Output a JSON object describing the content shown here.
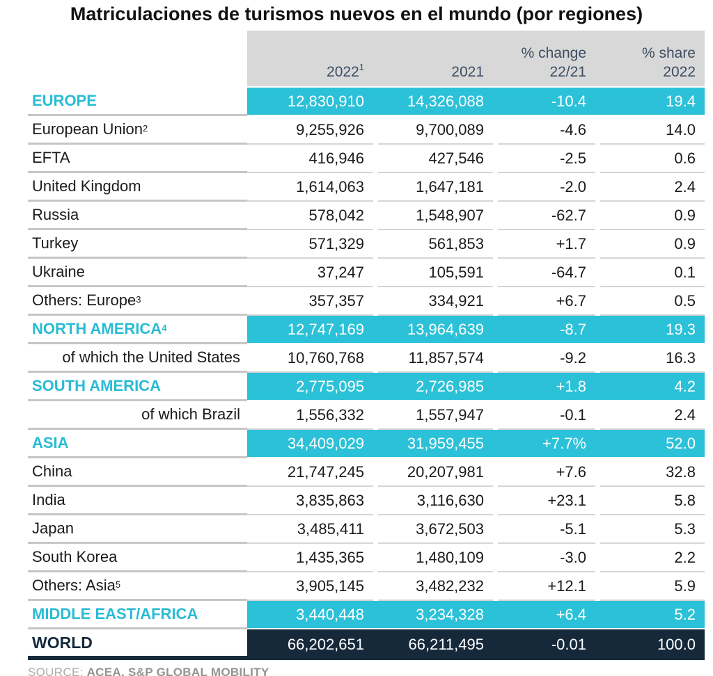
{
  "title": "Matriculaciones de turismos nuevos en el mundo (por regiones)",
  "header": {
    "cols": [
      {
        "line1": "",
        "line2": "2022",
        "sup": "1"
      },
      {
        "line1": "",
        "line2": "2021",
        "sup": ""
      },
      {
        "line1": "% change",
        "line2": "22/21",
        "sup": ""
      },
      {
        "line1": "% share",
        "line2": "2022",
        "sup": ""
      }
    ]
  },
  "source": {
    "prefix": "SOURCE:",
    "text": "ACEA, S&P GLOBAL MOBILITY"
  },
  "colors": {
    "accent_cyan": "#2BC1D8",
    "region_label_cyan": "#29BCD4",
    "dark_navy": "#15293B",
    "header_gray": "#D8D8D8",
    "header_text": "#3D4D61",
    "separator_gray": "#C6C6C6",
    "source_gray": "#949494"
  },
  "chart_data": {
    "type": "table",
    "title": "Matriculaciones de turismos nuevos en el mundo (por regiones)",
    "columns": [
      "2022¹",
      "2021",
      "% change 22/21",
      "% share 2022"
    ],
    "rows": [
      {
        "label": "EUROPE",
        "sup": "",
        "style": "region",
        "cells": [
          "12,830,910",
          "14,326,088",
          "-10.4",
          "19.4"
        ],
        "values": [
          12830910,
          14326088,
          -10.4,
          19.4
        ]
      },
      {
        "label": "European Union",
        "sup": "2",
        "style": "country",
        "cells": [
          "9,255,926",
          "9,700,089",
          "-4.6",
          "14.0"
        ],
        "values": [
          9255926,
          9700089,
          -4.6,
          14.0
        ]
      },
      {
        "label": "EFTA",
        "sup": "",
        "style": "country",
        "cells": [
          "416,946",
          "427,546",
          "-2.5",
          "0.6"
        ],
        "values": [
          416946,
          427546,
          -2.5,
          0.6
        ]
      },
      {
        "label": "United Kingdom",
        "sup": "",
        "style": "country",
        "cells": [
          "1,614,063",
          "1,647,181",
          "-2.0",
          "2.4"
        ],
        "values": [
          1614063,
          1647181,
          -2.0,
          2.4
        ]
      },
      {
        "label": "Russia",
        "sup": "",
        "style": "country",
        "cells": [
          "578,042",
          "1,548,907",
          "-62.7",
          "0.9"
        ],
        "values": [
          578042,
          1548907,
          -62.7,
          0.9
        ]
      },
      {
        "label": "Turkey",
        "sup": "",
        "style": "country",
        "cells": [
          "571,329",
          "561,853",
          "+1.7",
          "0.9"
        ],
        "values": [
          571329,
          561853,
          1.7,
          0.9
        ]
      },
      {
        "label": "Ukraine",
        "sup": "",
        "style": "country",
        "cells": [
          "37,247",
          "105,591",
          "-64.7",
          "0.1"
        ],
        "values": [
          37247,
          105591,
          -64.7,
          0.1
        ]
      },
      {
        "label": "Others: Europe",
        "sup": "3",
        "style": "country",
        "cells": [
          "357,357",
          "334,921",
          "+6.7",
          "0.5"
        ],
        "values": [
          357357,
          334921,
          6.7,
          0.5
        ]
      },
      {
        "label": "NORTH AMERICA",
        "sup": "4",
        "style": "region",
        "cells": [
          "12,747,169",
          "13,964,639",
          "-8.7",
          "19.3"
        ],
        "values": [
          12747169,
          13964639,
          -8.7,
          19.3
        ]
      },
      {
        "label": "of which the United States",
        "sup": "",
        "style": "subright",
        "cells": [
          "10,760,768",
          "11,857,574",
          "-9.2",
          "16.3"
        ],
        "values": [
          10760768,
          11857574,
          -9.2,
          16.3
        ]
      },
      {
        "label": "SOUTH AMERICA",
        "sup": "",
        "style": "region",
        "cells": [
          "2,775,095",
          "2,726,985",
          "+1.8",
          "4.2"
        ],
        "values": [
          2775095,
          2726985,
          1.8,
          4.2
        ]
      },
      {
        "label": "of which Brazil",
        "sup": "",
        "style": "subright",
        "cells": [
          "1,556,332",
          "1,557,947",
          "-0.1",
          "2.4"
        ],
        "values": [
          1556332,
          1557947,
          -0.1,
          2.4
        ]
      },
      {
        "label": "ASIA",
        "sup": "",
        "style": "region",
        "cells": [
          "34,409,029",
          "31,959,455",
          "+7.7%",
          "52.0"
        ],
        "values": [
          34409029,
          31959455,
          7.7,
          52.0
        ]
      },
      {
        "label": "China",
        "sup": "",
        "style": "country",
        "cells": [
          "21,747,245",
          "20,207,981",
          "+7.6",
          "32.8"
        ],
        "values": [
          21747245,
          20207981,
          7.6,
          32.8
        ]
      },
      {
        "label": "India",
        "sup": "",
        "style": "country",
        "cells": [
          "3,835,863",
          "3,116,630",
          "+23.1",
          "5.8"
        ],
        "values": [
          3835863,
          3116630,
          23.1,
          5.8
        ]
      },
      {
        "label": "Japan",
        "sup": "",
        "style": "country",
        "cells": [
          "3,485,411",
          "3,672,503",
          "-5.1",
          "5.3"
        ],
        "values": [
          3485411,
          3672503,
          -5.1,
          5.3
        ]
      },
      {
        "label": "South Korea",
        "sup": "",
        "style": "country",
        "cells": [
          "1,435,365",
          "1,480,109",
          "-3.0",
          "2.2"
        ],
        "values": [
          1435365,
          1480109,
          -3.0,
          2.2
        ]
      },
      {
        "label": "Others: Asia",
        "sup": "5",
        "style": "country",
        "cells": [
          "3,905,145",
          "3,482,232",
          "+12.1",
          "5.9"
        ],
        "values": [
          3905145,
          3482232,
          12.1,
          5.9
        ]
      },
      {
        "label": "MIDDLE EAST/AFRICA",
        "sup": "",
        "style": "region",
        "cells": [
          "3,440,448",
          "3,234,328",
          "+6.4",
          "5.2"
        ],
        "values": [
          3440448,
          3234328,
          6.4,
          5.2
        ]
      },
      {
        "label": "WORLD",
        "sup": "",
        "style": "world",
        "cells": [
          "66,202,651",
          "66,211,495",
          "-0.01",
          "100.0"
        ],
        "values": [
          66202651,
          66211495,
          -0.01,
          100.0
        ]
      }
    ]
  }
}
